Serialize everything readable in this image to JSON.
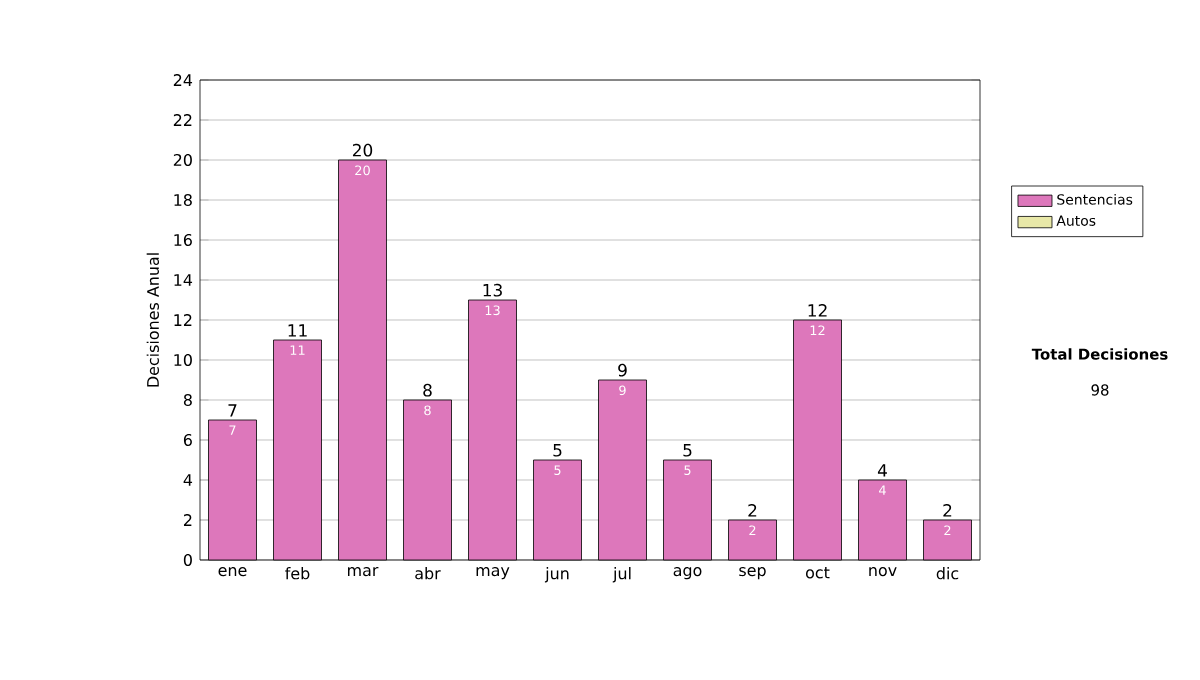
{
  "chart_data": {
    "type": "bar",
    "stacked": true,
    "ylabel": "Decisiones Anual",
    "categories": [
      "ene",
      "feb",
      "mar",
      "abr",
      "may",
      "jun",
      "jul",
      "ago",
      "sep",
      "oct",
      "nov",
      "dic"
    ],
    "series": [
      {
        "name": "Sentencias",
        "color": "#dd77bb",
        "values": [
          7,
          11,
          20,
          8,
          13,
          5,
          9,
          5,
          2,
          12,
          4,
          2
        ],
        "value_labels": [
          "7",
          "11",
          "20",
          "8",
          "13",
          "5",
          "9",
          "5",
          "2",
          "12",
          "4",
          "2"
        ]
      },
      {
        "name": "Autos",
        "color": "#e8e8a8",
        "values": [
          0,
          0,
          0,
          0,
          0,
          0,
          0,
          0,
          0,
          0,
          0,
          0
        ]
      }
    ],
    "totals": [
      "7",
      "11",
      "20",
      "8",
      "13",
      "5",
      "9",
      "5",
      "2",
      "12",
      "4",
      "2"
    ],
    "ylim": [
      0,
      24
    ],
    "yticks": [
      0,
      2,
      4,
      6,
      8,
      10,
      12,
      14,
      16,
      18,
      20,
      22,
      24
    ],
    "grid": "y",
    "legend": "right",
    "annotations": [
      "Total Decisiones",
      "98"
    ]
  }
}
